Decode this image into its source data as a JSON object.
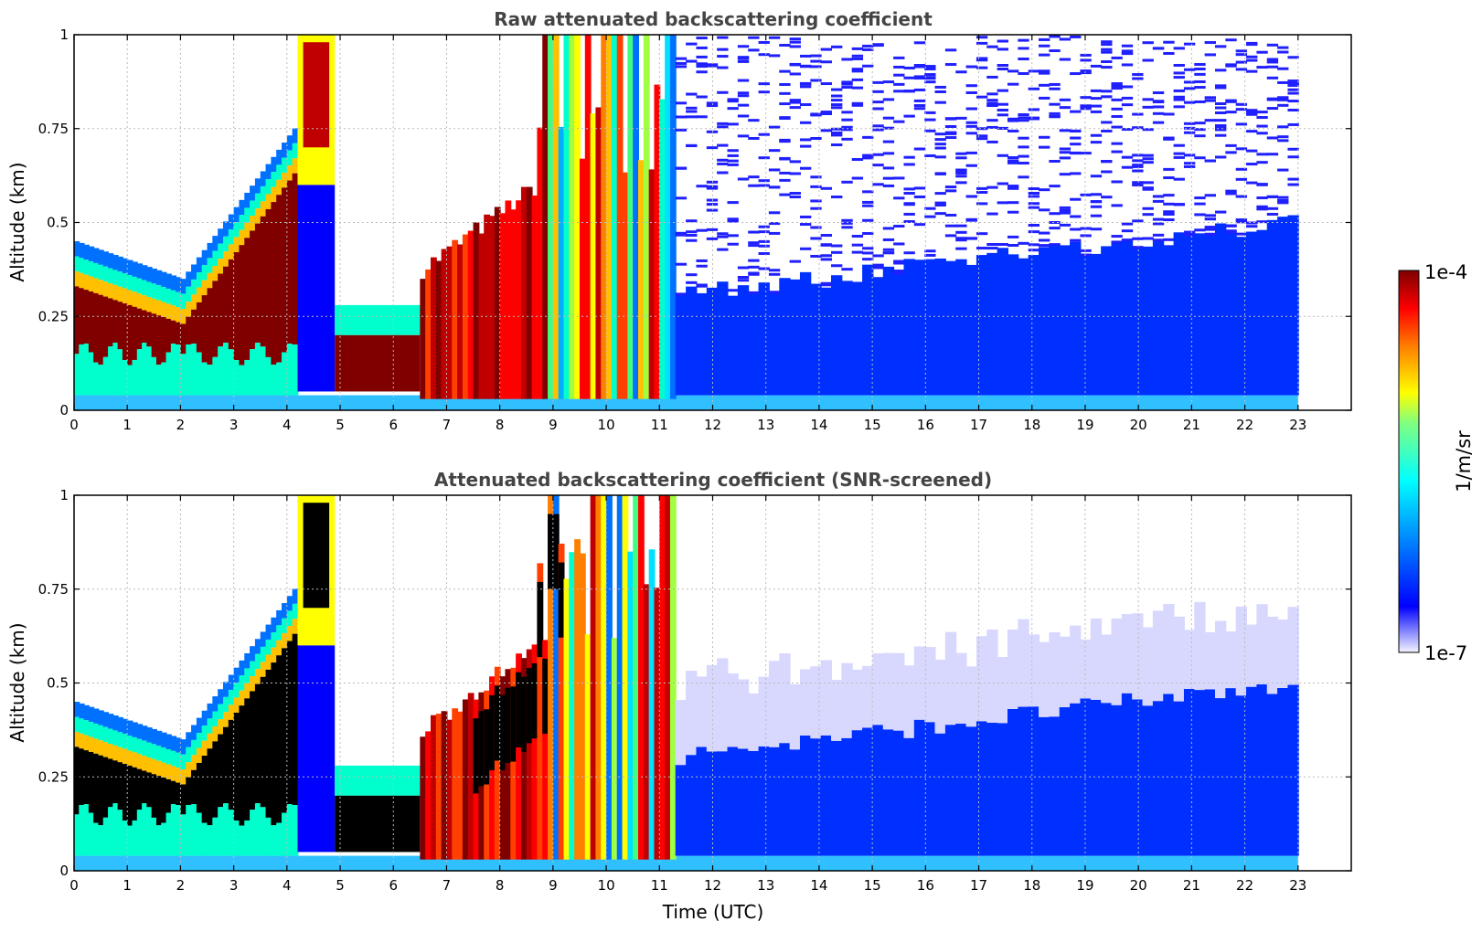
{
  "chart_data": [
    {
      "type": "heatmap",
      "title": "Raw attenuated backscattering coefficient",
      "xlabel": "",
      "ylabel": "Altitude (km)",
      "xlim": [
        0,
        24
      ],
      "ylim": [
        0,
        1
      ],
      "x_ticks": [
        "0",
        "1",
        "2",
        "3",
        "4",
        "5",
        "6",
        "7",
        "8",
        "9",
        "10",
        "11",
        "12",
        "13",
        "14",
        "15",
        "16",
        "17",
        "18",
        "19",
        "20",
        "21",
        "22",
        "23"
      ],
      "y_ticks": [
        "0",
        "0.25",
        "0.5",
        "0.75",
        "1"
      ],
      "grid": true,
      "data_end_time": 23,
      "features": [
        {
          "name": "boundary layer aerosol",
          "start": 0,
          "end": 2.0,
          "base_km": 0.15,
          "top_km": 0.45,
          "level": "high"
        },
        {
          "name": "rising layer",
          "start": 2.0,
          "end": 4.2,
          "base_km": 0.15,
          "top_km": 0.78,
          "level": "high"
        },
        {
          "name": "cloud",
          "start": 4.2,
          "end": 4.9,
          "base_km": 0.6,
          "top_km": 1.0,
          "level": "very high"
        },
        {
          "name": "low layer",
          "start": 4.9,
          "end": 6.5,
          "base_km": 0.05,
          "top_km": 0.28,
          "level": "high"
        },
        {
          "name": "precipitation streaks",
          "start": 6.5,
          "end": 11.3,
          "base_km": 0.0,
          "top_km": 1.0,
          "level": "high"
        },
        {
          "name": "noisy clear sky",
          "start": 11.3,
          "end": 23,
          "base_km": 0.0,
          "top_km": 1.0,
          "level": "low"
        }
      ]
    },
    {
      "type": "heatmap",
      "title": "Attenuated backscattering coefficient (SNR-screened)",
      "xlabel": "Time (UTC)",
      "ylabel": "Altitude (km)",
      "xlim": [
        0,
        24
      ],
      "ylim": [
        0,
        1
      ],
      "x_ticks": [
        "0",
        "1",
        "2",
        "3",
        "4",
        "5",
        "6",
        "7",
        "8",
        "9",
        "10",
        "11",
        "12",
        "13",
        "14",
        "15",
        "16",
        "17",
        "18",
        "19",
        "20",
        "21",
        "22",
        "23"
      ],
      "y_ticks": [
        "0",
        "0.25",
        "0.5",
        "0.75",
        "1"
      ],
      "grid": true,
      "data_end_time": 23,
      "features": [
        {
          "name": "boundary layer aerosol",
          "start": 0,
          "end": 2.0,
          "base_km": 0.15,
          "top_km": 0.45,
          "level": "saturated"
        },
        {
          "name": "rising layer",
          "start": 2.0,
          "end": 4.2,
          "base_km": 0.15,
          "top_km": 0.78,
          "level": "saturated"
        },
        {
          "name": "cloud",
          "start": 4.2,
          "end": 4.9,
          "base_km": 0.6,
          "top_km": 1.0,
          "level": "very high"
        },
        {
          "name": "low layer",
          "start": 4.9,
          "end": 6.5,
          "base_km": 0.05,
          "top_km": 0.28,
          "level": "saturated"
        },
        {
          "name": "precipitation streaks",
          "start": 6.5,
          "end": 11.3,
          "base_km": 0.0,
          "top_km": 1.0,
          "level": "high"
        },
        {
          "name": "screened boundary layer",
          "start": 11.3,
          "end": 23,
          "base_km": 0.0,
          "top_km": 0.7,
          "level": "low"
        }
      ]
    }
  ],
  "colorbar": {
    "label": "1/m/sr",
    "max_label": "1e-4",
    "min_label": "1e-7",
    "colormap": "jet"
  }
}
